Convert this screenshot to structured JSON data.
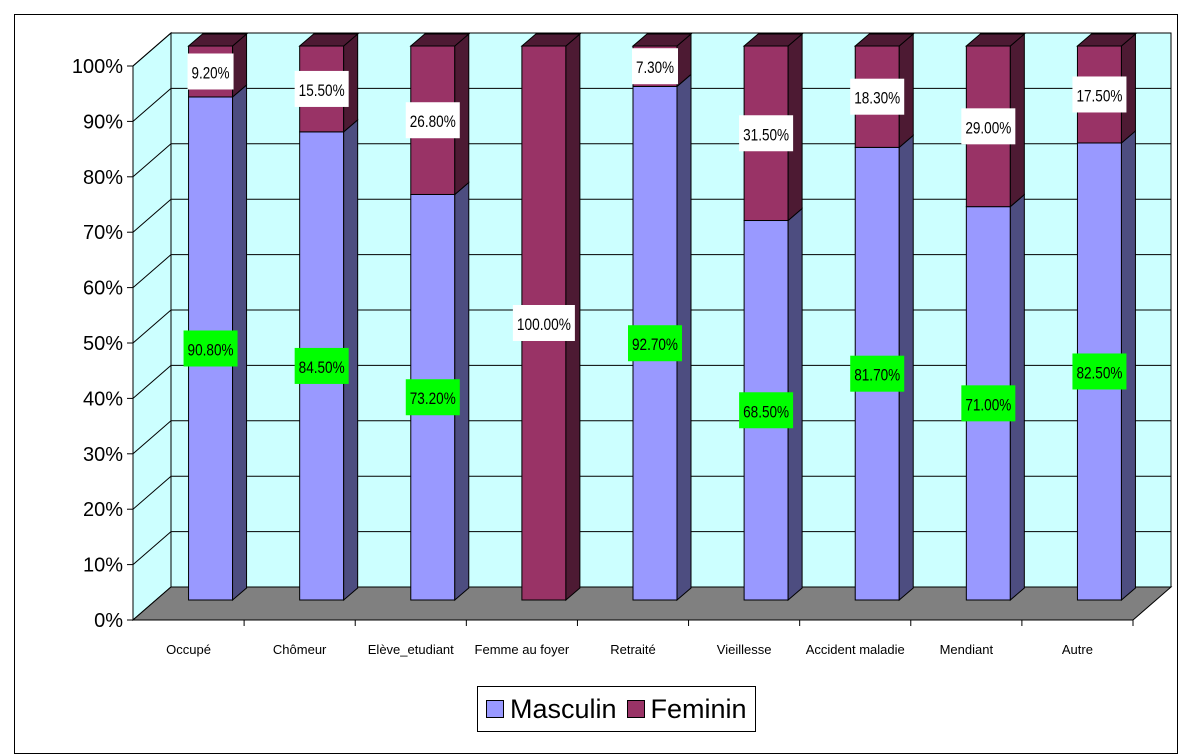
{
  "chart_data": {
    "type": "bar",
    "stacked": true,
    "percent_stacked": true,
    "style": "3d",
    "categories": [
      "Occupé",
      "Chômeur",
      "Elève_etudiant",
      "Femme au foyer",
      "Retraité",
      "Vieillesse",
      "Accident maladie",
      "Mendiant",
      "Autre"
    ],
    "series": [
      {
        "name": "Masculin",
        "color": "#9999ff",
        "side_color": "#4d4d80",
        "values": [
          90.8,
          84.5,
          73.2,
          0,
          92.7,
          68.5,
          81.7,
          71.0,
          82.5
        ],
        "labels": [
          "90.80%",
          "84.50%",
          "73.20%",
          "",
          "92.70%",
          "68.50%",
          "81.70%",
          "71.00%",
          "82.50%"
        ],
        "label_bg": "#00ff00"
      },
      {
        "name": "Feminin",
        "color": "#993366",
        "side_color": "#4d1a33",
        "values": [
          9.2,
          15.5,
          26.8,
          100.0,
          7.3,
          31.5,
          18.3,
          29.0,
          17.5
        ],
        "labels": [
          "9.20%",
          "15.50%",
          "26.80%",
          "100.00%",
          "7.30%",
          "31.50%",
          "18.30%",
          "29.00%",
          "17.50%"
        ],
        "label_bg": "#ffffff"
      }
    ],
    "yticks": [
      "0%",
      "10%",
      "20%",
      "30%",
      "40%",
      "50%",
      "60%",
      "70%",
      "80%",
      "90%",
      "100%"
    ],
    "ylim": [
      0,
      100
    ],
    "grid": true,
    "wall_color": "#ccffff",
    "floor_color": "#808080",
    "legend_position": "bottom"
  }
}
